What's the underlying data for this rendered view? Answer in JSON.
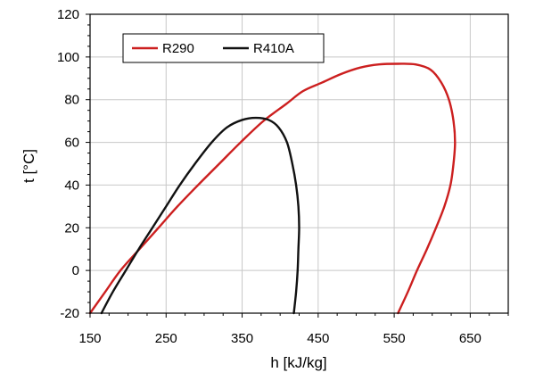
{
  "chart_data": {
    "type": "line",
    "title": "",
    "xlabel": "h [kJ/kg]",
    "ylabel": "t [°C]",
    "xlim": [
      150,
      700
    ],
    "ylim": [
      -20,
      120
    ],
    "xticks": [
      150,
      250,
      350,
      450,
      550,
      650
    ],
    "yticks": [
      -20,
      0,
      20,
      40,
      60,
      80,
      100,
      120
    ],
    "grid": true,
    "legend_position": "top-left",
    "series": [
      {
        "name": "R290",
        "color": "#cc1f1f",
        "points": [
          [
            150,
            -20
          ],
          [
            170,
            -10
          ],
          [
            190,
            0
          ],
          [
            215,
            10
          ],
          [
            240,
            20
          ],
          [
            265,
            30
          ],
          [
            292,
            40
          ],
          [
            320,
            50
          ],
          [
            348,
            60
          ],
          [
            378,
            70
          ],
          [
            408,
            78
          ],
          [
            430,
            84
          ],
          [
            455,
            88
          ],
          [
            480,
            92
          ],
          [
            505,
            95
          ],
          [
            530,
            96.5
          ],
          [
            555,
            96.8
          ],
          [
            578,
            96.5
          ],
          [
            598,
            94
          ],
          [
            612,
            88
          ],
          [
            622,
            80
          ],
          [
            628,
            70
          ],
          [
            630,
            60
          ],
          [
            628,
            50
          ],
          [
            624,
            40
          ],
          [
            616,
            30
          ],
          [
            605,
            20
          ],
          [
            593,
            10
          ],
          [
            580,
            0
          ],
          [
            568,
            -10
          ],
          [
            555,
            -20
          ]
        ]
      },
      {
        "name": "R410A",
        "color": "#111111",
        "points": [
          [
            165,
            -20
          ],
          [
            180,
            -10
          ],
          [
            197,
            0
          ],
          [
            214,
            10
          ],
          [
            232,
            20
          ],
          [
            250,
            30
          ],
          [
            268,
            40
          ],
          [
            288,
            50
          ],
          [
            310,
            60
          ],
          [
            330,
            67
          ],
          [
            350,
            70.5
          ],
          [
            368,
            71.5
          ],
          [
            385,
            70.5
          ],
          [
            398,
            67
          ],
          [
            409,
            60
          ],
          [
            416,
            50
          ],
          [
            421,
            40
          ],
          [
            424,
            30
          ],
          [
            425,
            20
          ],
          [
            424,
            10
          ],
          [
            423,
            0
          ],
          [
            421,
            -10
          ],
          [
            418,
            -20
          ]
        ]
      }
    ]
  }
}
